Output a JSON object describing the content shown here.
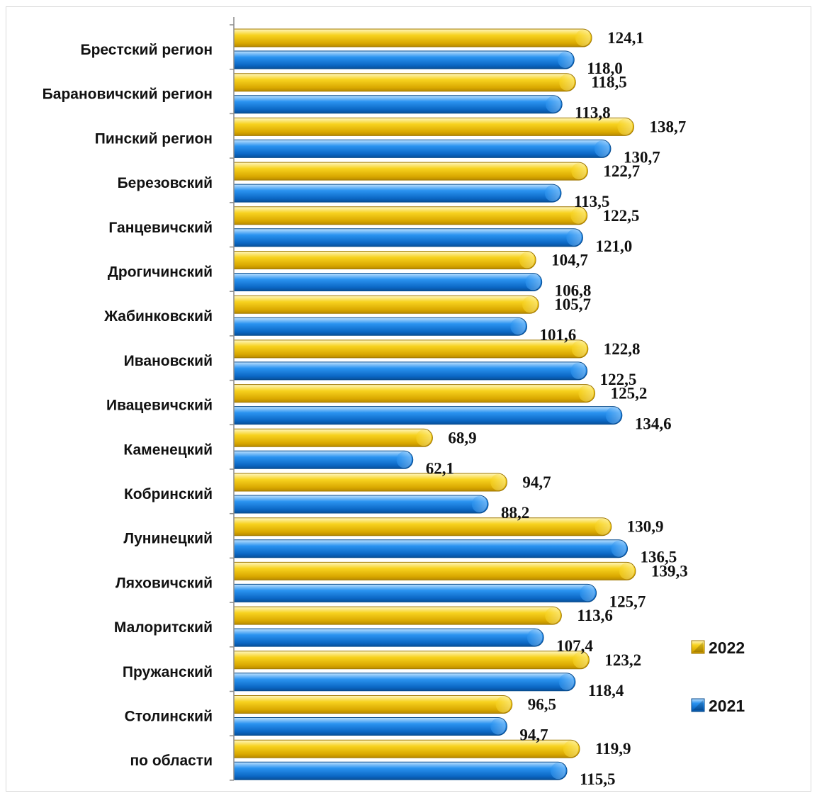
{
  "chart_data": {
    "type": "bar",
    "orientation": "horizontal",
    "categories": [
      "Брестский регион",
      "Барановичский регион",
      "Пинский регион",
      "Березовский",
      "Ганцевичский",
      "Дрогичинский",
      "Жабинковский",
      "Ивановский",
      "Ивацевичский",
      "Каменецкий",
      "Кобринский",
      "Лунинецкий",
      "Ляховичский",
      "Малоритский",
      "Пружанский",
      "Столинский",
      "по области"
    ],
    "series": [
      {
        "name": "2022",
        "color": "#f2c200",
        "values": [
          124.1,
          118.5,
          138.7,
          122.7,
          122.5,
          104.7,
          105.7,
          122.8,
          125.2,
          68.9,
          94.7,
          130.9,
          139.3,
          113.6,
          123.2,
          96.5,
          119.9
        ],
        "labels": [
          "124,1",
          "118,5",
          "138,7",
          "122,7",
          "122,5",
          "104,7",
          "105,7",
          "122,8",
          "125,2",
          "68,9",
          "94,7",
          "130,9",
          "139,3",
          "113,6",
          "123,2",
          "96,5",
          "119,9"
        ]
      },
      {
        "name": "2021",
        "color": "#1a7fe0",
        "values": [
          118.0,
          113.8,
          130.7,
          113.5,
          121.0,
          106.8,
          101.6,
          122.5,
          134.6,
          62.1,
          88.2,
          136.5,
          125.7,
          107.4,
          118.4,
          94.7,
          115.5
        ],
        "labels": [
          "118,0",
          "113,8",
          "130,7",
          "113,5",
          "121,0",
          "106,8",
          "101,6",
          "122,5",
          "134,6",
          "62,1",
          "88,2",
          "136,5",
          "125,7",
          "107,4",
          "118,4",
          "94,7",
          "115,5"
        ]
      }
    ],
    "xlim": [
      0,
      145
    ],
    "grid": false,
    "legend_position": "right"
  }
}
